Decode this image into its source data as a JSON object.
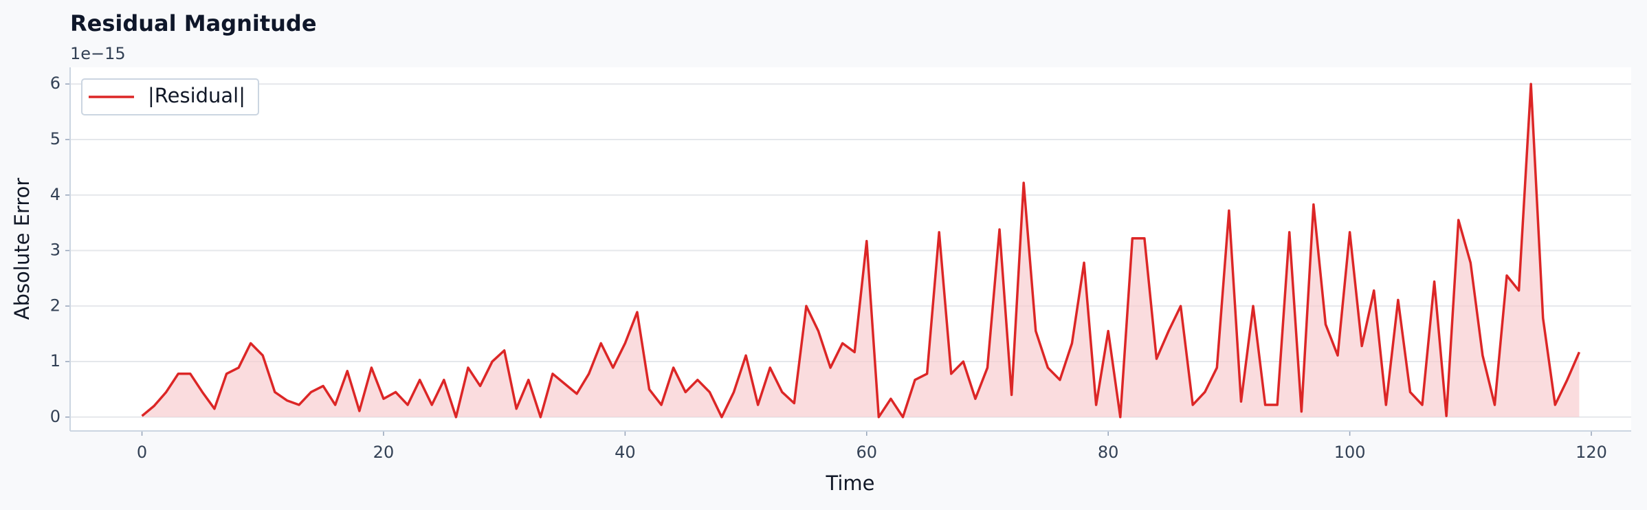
{
  "chart_data": {
    "type": "line",
    "title": "Residual Magnitude",
    "y_offset_label": "1e−15",
    "x_label": "Time",
    "y_label": "Absolute Error",
    "x": [
      0,
      1,
      2,
      3,
      4,
      5,
      6,
      7,
      8,
      9,
      10,
      11,
      12,
      13,
      14,
      15,
      16,
      17,
      18,
      19,
      20,
      21,
      22,
      23,
      24,
      25,
      26,
      27,
      28,
      29,
      30,
      31,
      32,
      33,
      34,
      35,
      36,
      37,
      38,
      39,
      40,
      41,
      42,
      43,
      44,
      45,
      46,
      47,
      48,
      49,
      50,
      51,
      52,
      53,
      54,
      55,
      56,
      57,
      58,
      59,
      60,
      61,
      62,
      63,
      64,
      65,
      66,
      67,
      68,
      69,
      70,
      71,
      72,
      73,
      74,
      75,
      76,
      77,
      78,
      79,
      80,
      81,
      82,
      83,
      84,
      85,
      86,
      87,
      88,
      89,
      90,
      91,
      92,
      93,
      94,
      95,
      96,
      97,
      98,
      99,
      100,
      101,
      102,
      103,
      104,
      105,
      106,
      107,
      108,
      109,
      110,
      111,
      112,
      113,
      114,
      115,
      116,
      117,
      118,
      119
    ],
    "series": [
      {
        "name": "|Residual|",
        "color": "#dc2626",
        "fill_color": "#f8c9cc",
        "values": [
          0.02,
          0.2,
          0.45,
          0.78,
          0.78,
          0.45,
          0.15,
          0.78,
          0.89,
          1.33,
          1.11,
          0.45,
          0.3,
          0.22,
          0.45,
          0.56,
          0.22,
          0.83,
          0.11,
          0.89,
          0.33,
          0.45,
          0.22,
          0.67,
          0.22,
          0.67,
          0.0,
          0.89,
          0.56,
          1.0,
          1.2,
          0.15,
          0.67,
          0.0,
          0.78,
          0.6,
          0.42,
          0.78,
          1.33,
          0.89,
          1.33,
          1.89,
          0.5,
          0.22,
          0.89,
          0.45,
          0.67,
          0.45,
          0.0,
          0.45,
          1.11,
          0.22,
          0.89,
          0.45,
          0.25,
          2.0,
          1.55,
          0.89,
          1.33,
          1.17,
          3.17,
          0.0,
          0.33,
          0.0,
          0.67,
          0.78,
          3.33,
          0.78,
          1.0,
          0.33,
          0.89,
          3.38,
          0.4,
          4.22,
          1.55,
          0.89,
          0.67,
          1.33,
          2.78,
          0.22,
          1.55,
          0.0,
          3.22,
          3.22,
          1.05,
          1.55,
          2.0,
          0.22,
          0.45,
          0.89,
          3.72,
          0.28,
          2.0,
          0.22,
          0.22,
          3.33,
          0.1,
          3.83,
          1.67,
          1.11,
          3.33,
          1.28,
          2.28,
          0.22,
          2.11,
          0.45,
          0.22,
          2.44,
          0.02,
          3.55,
          2.78,
          1.11,
          0.22,
          2.55,
          2.28,
          6.0,
          1.78,
          0.22,
          0.67,
          1.17
        ]
      }
    ],
    "xlim": [
      -5.95,
      123.3
    ],
    "ylim": [
      -0.25,
      6.3
    ],
    "xticks": [
      0,
      20,
      40,
      60,
      80,
      100,
      120
    ],
    "yticks": [
      0,
      1,
      2,
      3,
      4,
      5,
      6
    ],
    "grid": true,
    "legend": "upper left"
  }
}
